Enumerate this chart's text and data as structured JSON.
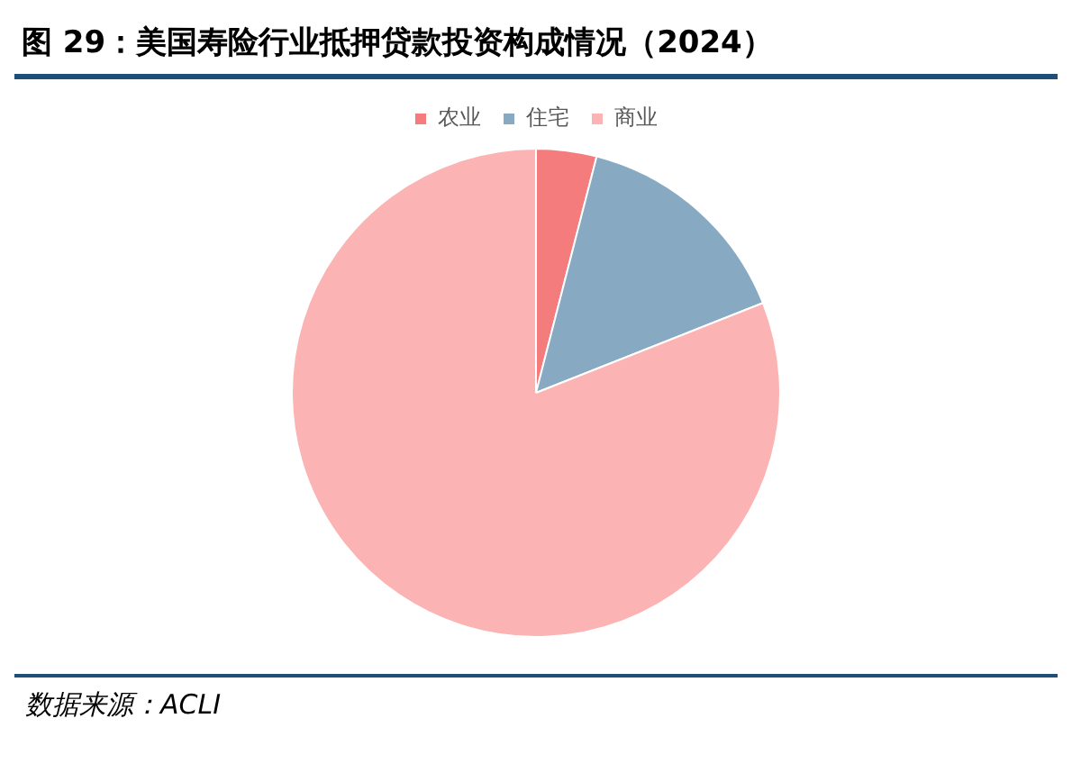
{
  "chart_data": {
    "type": "pie",
    "title": "图 29：美国寿险行业抵押贷款投资构成情况（2024）",
    "categories": [
      "农业",
      "住宅",
      "商业"
    ],
    "values": [
      4,
      15,
      81
    ],
    "colors": [
      "#f47c7c",
      "#87a9c2",
      "#fcb3b3"
    ],
    "legend": "top",
    "annotations": [
      "数据来源：ACLI"
    ]
  }
}
